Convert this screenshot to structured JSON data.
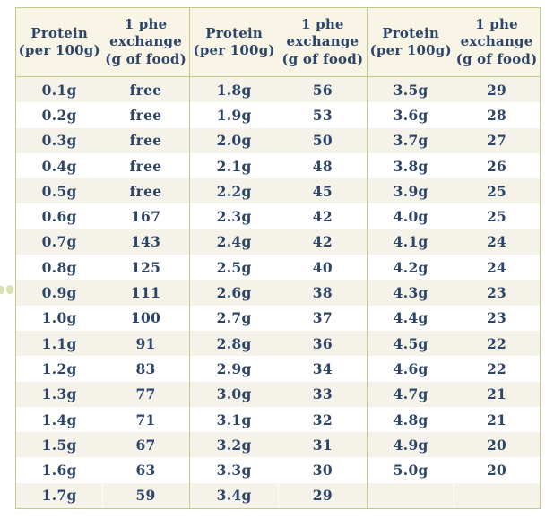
{
  "page": {
    "background_color": "#ffffff"
  },
  "decor": {
    "dot_color": "#d9e3b1"
  },
  "table": {
    "border_color": "#c2c98a",
    "header_bg_color": "#f8f4e6",
    "row_alt_bg_color": "#f5f2ea",
    "text_color": "#2d4568",
    "header": {
      "protein": [
        "Protein",
        "(per 100g)"
      ],
      "phe": [
        "1 phe",
        "exchange",
        "(g of food)"
      ]
    },
    "panes": [
      {
        "rows": [
          [
            "0.1g",
            "free"
          ],
          [
            "0.2g",
            "free"
          ],
          [
            "0.3g",
            "free"
          ],
          [
            "0.4g",
            "free"
          ],
          [
            "0.5g",
            "free"
          ],
          [
            "0.6g",
            "167"
          ],
          [
            "0.7g",
            "143"
          ],
          [
            "0.8g",
            "125"
          ],
          [
            "0.9g",
            "111"
          ],
          [
            "1.0g",
            "100"
          ],
          [
            "1.1g",
            "91"
          ],
          [
            "1.2g",
            "83"
          ],
          [
            "1.3g",
            "77"
          ],
          [
            "1.4g",
            "71"
          ],
          [
            "1.5g",
            "67"
          ],
          [
            "1.6g",
            "63"
          ],
          [
            "1.7g",
            "59"
          ]
        ]
      },
      {
        "rows": [
          [
            "1.8g",
            "56"
          ],
          [
            "1.9g",
            "53"
          ],
          [
            "2.0g",
            "50"
          ],
          [
            "2.1g",
            "48"
          ],
          [
            "2.2g",
            "45"
          ],
          [
            "2.3g",
            "42"
          ],
          [
            "2.4g",
            "42"
          ],
          [
            "2.5g",
            "40"
          ],
          [
            "2.6g",
            "38"
          ],
          [
            "2.7g",
            "37"
          ],
          [
            "2.8g",
            "36"
          ],
          [
            "2.9g",
            "34"
          ],
          [
            "3.0g",
            "33"
          ],
          [
            "3.1g",
            "32"
          ],
          [
            "3.2g",
            "31"
          ],
          [
            "3.3g",
            "30"
          ],
          [
            "3.4g",
            "29"
          ]
        ]
      },
      {
        "rows": [
          [
            "3.5g",
            "29"
          ],
          [
            "3.6g",
            "28"
          ],
          [
            "3.7g",
            "27"
          ],
          [
            "3.8g",
            "26"
          ],
          [
            "3.9g",
            "25"
          ],
          [
            "4.0g",
            "25"
          ],
          [
            "4.1g",
            "24"
          ],
          [
            "4.2g",
            "24"
          ],
          [
            "4.3g",
            "23"
          ],
          [
            "4.4g",
            "23"
          ],
          [
            "4.5g",
            "22"
          ],
          [
            "4.6g",
            "22"
          ],
          [
            "4.7g",
            "21"
          ],
          [
            "4.8g",
            "21"
          ],
          [
            "4.9g",
            "20"
          ],
          [
            "5.0g",
            "20"
          ],
          [
            "",
            ""
          ]
        ]
      }
    ]
  }
}
